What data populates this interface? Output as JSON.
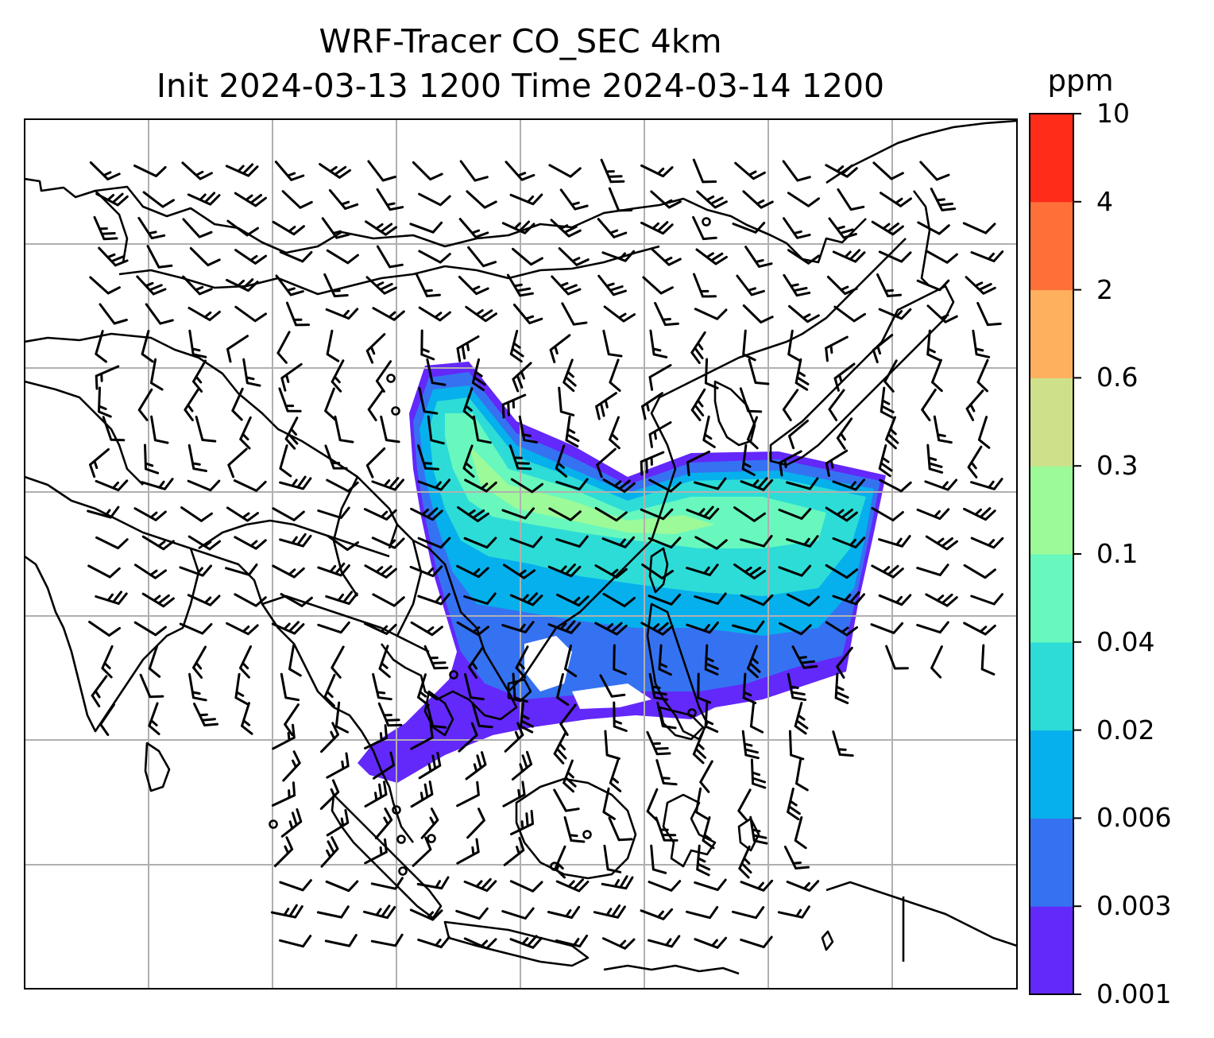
{
  "title": {
    "line1": "WRF-Tracer CO_SEC 4km",
    "line2": "Init 2024-03-13 1200 Time 2024-03-14 1200"
  },
  "colorbar": {
    "unit": "ppm",
    "ticks": [
      "0.001",
      "0.003",
      "0.006",
      "0.02",
      "0.04",
      "0.1",
      "0.3",
      "0.6",
      "2",
      "4",
      "10"
    ],
    "colors": [
      "#6328fa",
      "#3572f2",
      "#06b0ec",
      "#2ddcd7",
      "#68f8be",
      "#9dfa98",
      "#cfe08a",
      "#ffb05e",
      "#ff7039",
      "#ff2c19"
    ]
  },
  "colors": {
    "coastline": "#000000",
    "gridline": "#b0b0b0",
    "wind_barb": "#000000"
  },
  "map": {
    "field": "CO_SEC",
    "grid": "on",
    "features": [
      "coastlines",
      "country-borders",
      "wind-barbs",
      "tracer-concentration-fill"
    ]
  }
}
